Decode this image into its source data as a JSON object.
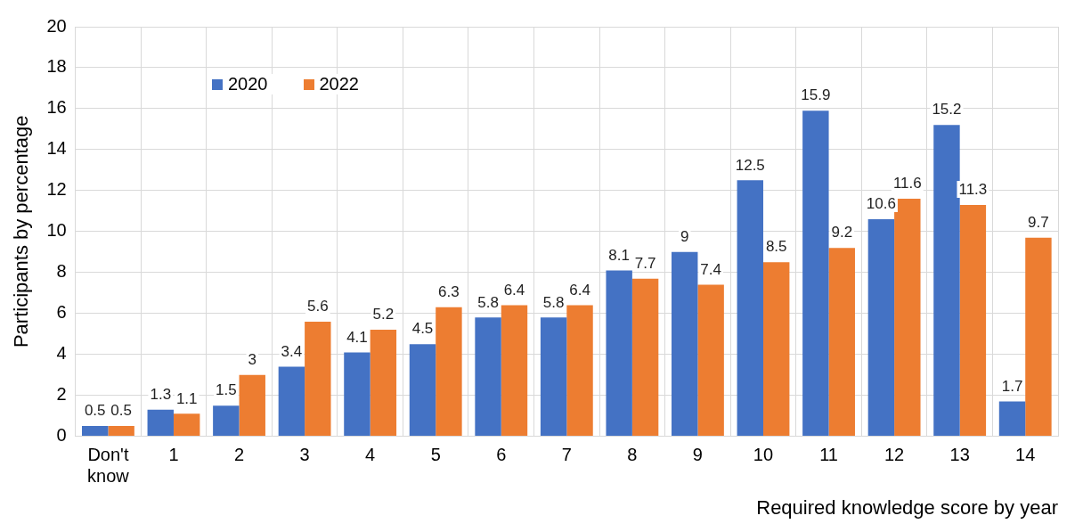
{
  "chart_data": {
    "type": "bar",
    "xlabel": "Required knowledge score by year",
    "ylabel": "Participants by percentage",
    "categories": [
      "Don't know",
      "1",
      "2",
      "3",
      "4",
      "5",
      "6",
      "7",
      "8",
      "9",
      "10",
      "11",
      "12",
      "13",
      "14"
    ],
    "series": [
      {
        "name": "2020",
        "color": "#4472c4",
        "values": [
          0.5,
          1.3,
          1.5,
          3.4,
          4.1,
          4.5,
          5.8,
          5.8,
          8.1,
          9,
          12.5,
          15.9,
          10.6,
          15.2,
          1.7
        ]
      },
      {
        "name": "2022",
        "color": "#ed7d31",
        "values": [
          0.5,
          1.1,
          3,
          5.6,
          5.2,
          6.3,
          6.4,
          6.4,
          7.7,
          7.4,
          8.5,
          9.2,
          11.6,
          11.3,
          9.7
        ]
      }
    ],
    "ylim": [
      0,
      20
    ],
    "yticks": [
      0,
      2,
      4,
      6,
      8,
      10,
      12,
      14,
      16,
      18,
      20
    ],
    "grid": true,
    "legend": "top left",
    "data_labels": true
  }
}
